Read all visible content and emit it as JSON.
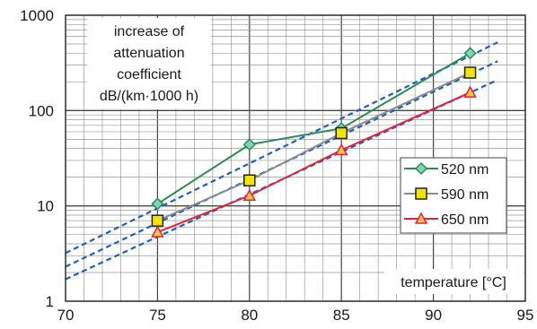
{
  "chart_data": {
    "type": "line",
    "x_scale": "linear",
    "y_scale": "log",
    "xlim": [
      70,
      95
    ],
    "ylim": [
      1,
      1000
    ],
    "x_ticks": [
      "70",
      "75",
      "80",
      "85",
      "90",
      "95"
    ],
    "y_ticks": [
      "1",
      "10",
      "100",
      "1000"
    ],
    "grid": true,
    "annotation_lines": [
      "increase of",
      "attenuation",
      "coefficient",
      "dB/(km·1000 h)"
    ],
    "xlabel": "temperature [°C]",
    "legend_position": "right",
    "series": [
      {
        "name": "520 nm",
        "color": "#2e8b57",
        "marker": "diamond",
        "marker_fill": "#7fd6b4",
        "x": [
          75,
          80,
          85,
          92
        ],
        "y": [
          10.5,
          44,
          65,
          400
        ]
      },
      {
        "name": "590 nm",
        "color": "#8c8c8c",
        "marker": "square",
        "marker_fill": "#f2e600",
        "x": [
          75,
          80,
          85,
          92
        ],
        "y": [
          7,
          18.5,
          58,
          250
        ]
      },
      {
        "name": "650 nm",
        "color": "#e8213a",
        "marker": "triangle",
        "marker_fill": "#f6c54a",
        "x": [
          75,
          80,
          85,
          92
        ],
        "y": [
          5.3,
          12.8,
          38.5,
          155
        ]
      }
    ],
    "fit_lines": [
      {
        "color": "#1f5fbf",
        "from": [
          70,
          3.2
        ],
        "to": [
          93.5,
          520
        ]
      },
      {
        "color": "#1f5fbf",
        "from": [
          70,
          2.3
        ],
        "to": [
          93.5,
          330
        ]
      },
      {
        "color": "#1f5fbf",
        "from": [
          70,
          1.7
        ],
        "to": [
          93.5,
          210
        ]
      }
    ]
  }
}
